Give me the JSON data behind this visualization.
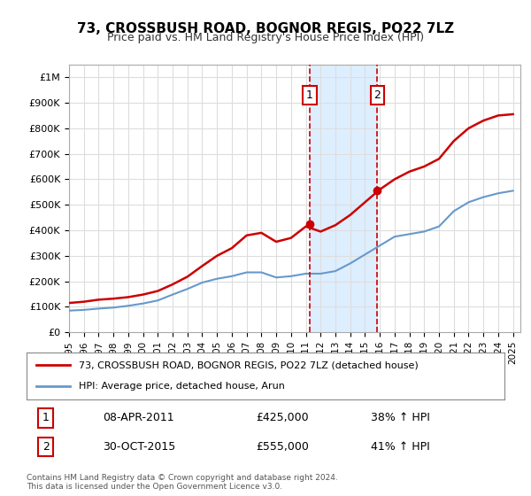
{
  "title": "73, CROSSBUSH ROAD, BOGNOR REGIS, PO22 7LZ",
  "subtitle": "Price paid vs. HM Land Registry's House Price Index (HPI)",
  "ylabel_ticks": [
    "£0",
    "£100K",
    "£200K",
    "£300K",
    "£400K",
    "£500K",
    "£600K",
    "£700K",
    "£800K",
    "£900K",
    "£1M"
  ],
  "ytick_values": [
    0,
    100000,
    200000,
    300000,
    400000,
    500000,
    600000,
    700000,
    800000,
    900000,
    1000000
  ],
  "ylim": [
    0,
    1050000
  ],
  "xlim_start": 1995.0,
  "xlim_end": 2025.5,
  "marker1_x": 2011.27,
  "marker2_x": 2015.83,
  "marker1_label": "1",
  "marker2_label": "2",
  "marker1_price": 425000,
  "marker2_price": 555000,
  "legend_line1": "73, CROSSBUSH ROAD, BOGNOR REGIS, PO22 7LZ (detached house)",
  "legend_line2": "HPI: Average price, detached house, Arun",
  "table_row1": [
    "1",
    "08-APR-2011",
    "£425,000",
    "38% ↑ HPI"
  ],
  "table_row2": [
    "2",
    "30-OCT-2015",
    "£555,000",
    "41% ↑ HPI"
  ],
  "footer": "Contains HM Land Registry data © Crown copyright and database right 2024.\nThis data is licensed under the Open Government Licence v3.0.",
  "red_line_color": "#cc0000",
  "blue_line_color": "#6699cc",
  "shade_color": "#ddeeff",
  "grid_color": "#dddddd",
  "background_color": "#ffffff",
  "hpi_scale_factor": 3.5,
  "years": [
    1995,
    1996,
    1997,
    1998,
    1999,
    2000,
    2001,
    2002,
    2003,
    2004,
    2005,
    2006,
    2007,
    2008,
    2009,
    2010,
    2011,
    2012,
    2013,
    2014,
    2015,
    2016,
    2017,
    2018,
    2019,
    2020,
    2021,
    2022,
    2023,
    2024,
    2025
  ],
  "red_values": [
    115000,
    120000,
    128000,
    132000,
    138000,
    148000,
    162000,
    188000,
    218000,
    260000,
    300000,
    330000,
    380000,
    390000,
    355000,
    370000,
    415000,
    395000,
    420000,
    460000,
    510000,
    560000,
    600000,
    630000,
    650000,
    680000,
    750000,
    800000,
    830000,
    850000,
    855000
  ],
  "blue_values": [
    85000,
    88000,
    93000,
    97000,
    104000,
    113000,
    125000,
    148000,
    170000,
    195000,
    210000,
    220000,
    235000,
    235000,
    215000,
    220000,
    230000,
    230000,
    240000,
    270000,
    305000,
    340000,
    375000,
    385000,
    395000,
    415000,
    475000,
    510000,
    530000,
    545000,
    555000
  ]
}
